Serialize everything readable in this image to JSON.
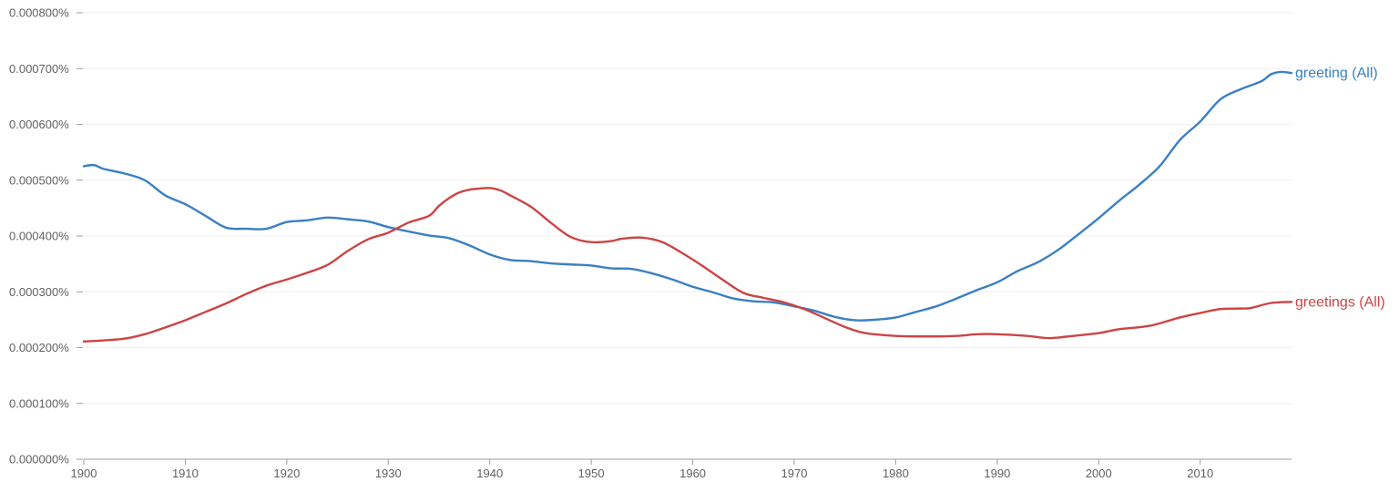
{
  "chart_data": {
    "type": "line",
    "title": "",
    "xlabel": "",
    "ylabel": "",
    "xlim": [
      1900,
      2019
    ],
    "ylim": [
      0,
      0.0008
    ],
    "y_tick_labels": [
      "0.000000%",
      "0.000100%",
      "0.000200%",
      "0.000300%",
      "0.000400%",
      "0.000500%",
      "0.000600%",
      "0.000700%",
      "0.000800%"
    ],
    "y_ticks": [
      0,
      0.0001,
      0.0002,
      0.0003,
      0.0004,
      0.0005,
      0.0006,
      0.0007,
      0.0008
    ],
    "x_tick_labels": [
      "1900",
      "1910",
      "1920",
      "1930",
      "1940",
      "1950",
      "1960",
      "1970",
      "1980",
      "1990",
      "2000",
      "2010"
    ],
    "x_ticks": [
      1900,
      1910,
      1920,
      1930,
      1940,
      1950,
      1960,
      1970,
      1980,
      1990,
      2000,
      2010
    ],
    "grid": true,
    "legend_placement": "right-end-of-lines",
    "series": [
      {
        "name": "greeting (All)",
        "color": "#3b7fc4",
        "points": [
          [
            1900,
            0.000525
          ],
          [
            1901,
            0.000527
          ],
          [
            1902,
            0.00052
          ],
          [
            1904,
            0.000512
          ],
          [
            1906,
            0.0005
          ],
          [
            1908,
            0.000473
          ],
          [
            1910,
            0.000457
          ],
          [
            1912,
            0.000436
          ],
          [
            1914,
            0.000415
          ],
          [
            1916,
            0.000413
          ],
          [
            1918,
            0.000413
          ],
          [
            1920,
            0.000425
          ],
          [
            1922,
            0.000428
          ],
          [
            1924,
            0.000433
          ],
          [
            1926,
            0.00043
          ],
          [
            1928,
            0.000426
          ],
          [
            1930,
            0.000416
          ],
          [
            1932,
            0.000408
          ],
          [
            1934,
            0.000401
          ],
          [
            1936,
            0.000396
          ],
          [
            1938,
            0.000383
          ],
          [
            1940,
            0.000367
          ],
          [
            1942,
            0.000357
          ],
          [
            1944,
            0.000355
          ],
          [
            1946,
            0.000351
          ],
          [
            1948,
            0.000349
          ],
          [
            1950,
            0.000347
          ],
          [
            1952,
            0.000342
          ],
          [
            1954,
            0.000341
          ],
          [
            1956,
            0.000333
          ],
          [
            1958,
            0.000322
          ],
          [
            1960,
            0.000309
          ],
          [
            1962,
            0.000299
          ],
          [
            1964,
            0.000288
          ],
          [
            1966,
            0.000283
          ],
          [
            1968,
            0.000281
          ],
          [
            1970,
            0.000274
          ],
          [
            1972,
            0.000266
          ],
          [
            1974,
            0.000255
          ],
          [
            1976,
            0.000249
          ],
          [
            1978,
            0.00025
          ],
          [
            1980,
            0.000254
          ],
          [
            1982,
            0.000264
          ],
          [
            1984,
            0.000274
          ],
          [
            1986,
            0.000288
          ],
          [
            1988,
            0.000303
          ],
          [
            1990,
            0.000317
          ],
          [
            1992,
            0.000337
          ],
          [
            1994,
            0.000353
          ],
          [
            1996,
            0.000375
          ],
          [
            1998,
            0.000403
          ],
          [
            2000,
            0.000432
          ],
          [
            2002,
            0.000463
          ],
          [
            2004,
            0.000492
          ],
          [
            2006,
            0.000525
          ],
          [
            2008,
            0.000572
          ],
          [
            2010,
            0.000605
          ],
          [
            2012,
            0.000645
          ],
          [
            2014,
            0.000663
          ],
          [
            2016,
            0.000677
          ],
          [
            2017,
            0.00069
          ],
          [
            2018,
            0.000694
          ],
          [
            2019,
            0.000692
          ]
        ]
      },
      {
        "name": "greetings (All)",
        "color": "#cc4444",
        "points": [
          [
            1900,
            0.000211
          ],
          [
            1902,
            0.000213
          ],
          [
            1904,
            0.000216
          ],
          [
            1906,
            0.000224
          ],
          [
            1908,
            0.000236
          ],
          [
            1910,
            0.000249
          ],
          [
            1912,
            0.000264
          ],
          [
            1914,
            0.000279
          ],
          [
            1916,
            0.000296
          ],
          [
            1918,
            0.000311
          ],
          [
            1920,
            0.000322
          ],
          [
            1922,
            0.000334
          ],
          [
            1924,
            0.000348
          ],
          [
            1926,
            0.000373
          ],
          [
            1928,
            0.000394
          ],
          [
            1930,
            0.000406
          ],
          [
            1932,
            0.000424
          ],
          [
            1934,
            0.000436
          ],
          [
            1935,
            0.000454
          ],
          [
            1936,
            0.000468
          ],
          [
            1937,
            0.000478
          ],
          [
            1938,
            0.000483
          ],
          [
            1939,
            0.000485
          ],
          [
            1940,
            0.000486
          ],
          [
            1941,
            0.000482
          ],
          [
            1942,
            0.000473
          ],
          [
            1944,
            0.000453
          ],
          [
            1946,
            0.000424
          ],
          [
            1948,
            0.000398
          ],
          [
            1950,
            0.000389
          ],
          [
            1952,
            0.000391
          ],
          [
            1953,
            0.000395
          ],
          [
            1955,
            0.000397
          ],
          [
            1957,
            0.000389
          ],
          [
            1959,
            0.000369
          ],
          [
            1961,
            0.000346
          ],
          [
            1963,
            0.000321
          ],
          [
            1965,
            0.000298
          ],
          [
            1967,
            0.000289
          ],
          [
            1969,
            0.000281
          ],
          [
            1971,
            0.000269
          ],
          [
            1973,
            0.000253
          ],
          [
            1975,
            0.000237
          ],
          [
            1977,
            0.000226
          ],
          [
            1980,
            0.000221
          ],
          [
            1983,
            0.00022
          ],
          [
            1986,
            0.000221
          ],
          [
            1988,
            0.000224
          ],
          [
            1990,
            0.000224
          ],
          [
            1993,
            0.000221
          ],
          [
            1995,
            0.000217
          ],
          [
            1997,
            0.00022
          ],
          [
            2000,
            0.000226
          ],
          [
            2002,
            0.000233
          ],
          [
            2005,
            0.000239
          ],
          [
            2008,
            0.000254
          ],
          [
            2010,
            0.000262
          ],
          [
            2012,
            0.000269
          ],
          [
            2014,
            0.00027
          ],
          [
            2015,
            0.000271
          ],
          [
            2017,
            0.00028
          ],
          [
            2019,
            0.000282
          ]
        ]
      }
    ]
  }
}
